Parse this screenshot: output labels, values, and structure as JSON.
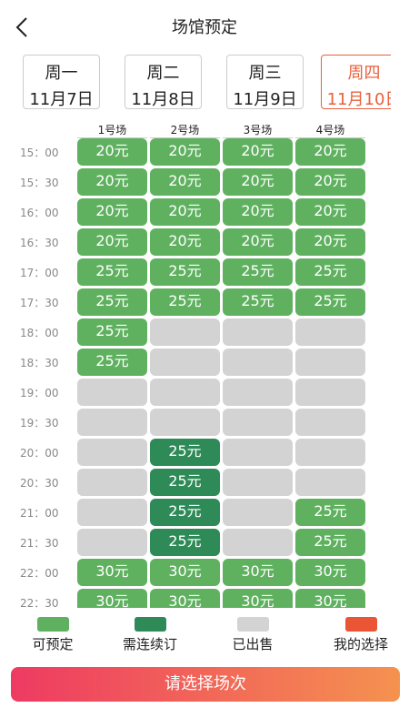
{
  "header": {
    "title": "场馆预定"
  },
  "dates": [
    {
      "weekday": "周一",
      "date": "11月7日"
    },
    {
      "weekday": "周二",
      "date": "11月8日"
    },
    {
      "weekday": "周三",
      "date": "11月9日"
    },
    {
      "weekday": "周四",
      "date": "11月10日",
      "selected": true
    }
  ],
  "courts": [
    "1号场",
    "2号场",
    "3号场",
    "4号场"
  ],
  "statuses": {
    "available": "#5fb160",
    "continuous": "#2e8b57",
    "sold": "#d3d3d3",
    "mine": "#ea5536"
  },
  "slots": [
    {
      "time": "15：00",
      "cells": [
        {
          "status": "available",
          "price": "20元"
        },
        {
          "status": "available",
          "price": "20元"
        },
        {
          "status": "available",
          "price": "20元"
        },
        {
          "status": "available",
          "price": "20元"
        }
      ]
    },
    {
      "time": "15：30",
      "cells": [
        {
          "status": "available",
          "price": "20元"
        },
        {
          "status": "available",
          "price": "20元"
        },
        {
          "status": "available",
          "price": "20元"
        },
        {
          "status": "available",
          "price": "20元"
        }
      ]
    },
    {
      "time": "16：00",
      "cells": [
        {
          "status": "available",
          "price": "20元"
        },
        {
          "status": "available",
          "price": "20元"
        },
        {
          "status": "available",
          "price": "20元"
        },
        {
          "status": "available",
          "price": "20元"
        }
      ]
    },
    {
      "time": "16：30",
      "cells": [
        {
          "status": "available",
          "price": "20元"
        },
        {
          "status": "available",
          "price": "20元"
        },
        {
          "status": "available",
          "price": "20元"
        },
        {
          "status": "available",
          "price": "20元"
        }
      ]
    },
    {
      "time": "17：00",
      "cells": [
        {
          "status": "available",
          "price": "25元"
        },
        {
          "status": "available",
          "price": "25元"
        },
        {
          "status": "available",
          "price": "25元"
        },
        {
          "status": "available",
          "price": "25元"
        }
      ]
    },
    {
      "time": "17：30",
      "cells": [
        {
          "status": "available",
          "price": "25元"
        },
        {
          "status": "available",
          "price": "25元"
        },
        {
          "status": "available",
          "price": "25元"
        },
        {
          "status": "available",
          "price": "25元"
        }
      ]
    },
    {
      "time": "18：00",
      "cells": [
        {
          "status": "available",
          "price": "25元"
        },
        {
          "status": "sold"
        },
        {
          "status": "sold"
        },
        {
          "status": "sold"
        }
      ]
    },
    {
      "time": "18：30",
      "cells": [
        {
          "status": "available",
          "price": "25元"
        },
        {
          "status": "sold"
        },
        {
          "status": "sold"
        },
        {
          "status": "sold"
        }
      ]
    },
    {
      "time": "19：00",
      "cells": [
        {
          "status": "sold"
        },
        {
          "status": "sold"
        },
        {
          "status": "sold"
        },
        {
          "status": "sold"
        }
      ]
    },
    {
      "time": "19：30",
      "cells": [
        {
          "status": "sold"
        },
        {
          "status": "sold"
        },
        {
          "status": "sold"
        },
        {
          "status": "sold"
        }
      ]
    },
    {
      "time": "20：00",
      "cells": [
        {
          "status": "sold"
        },
        {
          "status": "continuous",
          "price": "25元"
        },
        {
          "status": "sold"
        },
        {
          "status": "sold"
        }
      ]
    },
    {
      "time": "20：30",
      "cells": [
        {
          "status": "sold"
        },
        {
          "status": "continuous",
          "price": "25元"
        },
        {
          "status": "sold"
        },
        {
          "status": "sold"
        }
      ]
    },
    {
      "time": "21：00",
      "cells": [
        {
          "status": "sold"
        },
        {
          "status": "continuous",
          "price": "25元"
        },
        {
          "status": "sold"
        },
        {
          "status": "available",
          "price": "25元"
        }
      ]
    },
    {
      "time": "21：30",
      "cells": [
        {
          "status": "sold"
        },
        {
          "status": "continuous",
          "price": "25元"
        },
        {
          "status": "sold"
        },
        {
          "status": "available",
          "price": "25元"
        }
      ]
    },
    {
      "time": "22：00",
      "cells": [
        {
          "status": "available",
          "price": "30元"
        },
        {
          "status": "available",
          "price": "30元"
        },
        {
          "status": "available",
          "price": "30元"
        },
        {
          "status": "available",
          "price": "30元"
        }
      ]
    },
    {
      "time": "22：30",
      "cells": [
        {
          "status": "available",
          "price": "30元"
        },
        {
          "status": "available",
          "price": "30元"
        },
        {
          "status": "available",
          "price": "30元"
        },
        {
          "status": "available",
          "price": "30元"
        }
      ]
    }
  ],
  "legend": [
    {
      "label": "可预定",
      "status": "available"
    },
    {
      "label": "需连续订",
      "status": "continuous"
    },
    {
      "label": "已出售",
      "status": "sold"
    },
    {
      "label": "我的选择",
      "status": "mine"
    }
  ],
  "button": {
    "label": "请选择场次"
  }
}
